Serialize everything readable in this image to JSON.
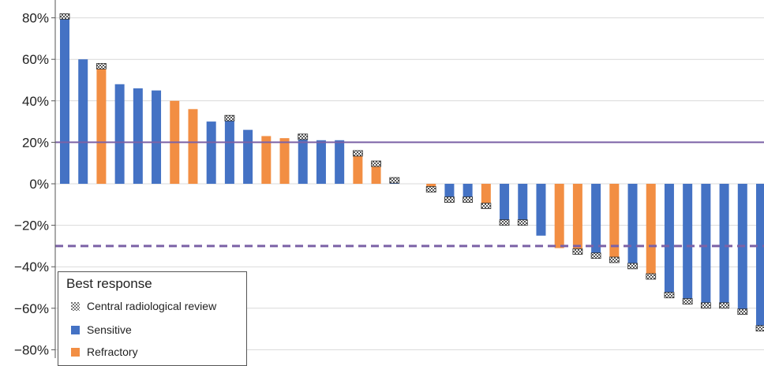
{
  "chart_data": {
    "type": "bar",
    "ylim": [
      -80,
      80
    ],
    "yticks": [
      -80,
      -60,
      -40,
      -20,
      0,
      20,
      40,
      60,
      80
    ],
    "ytick_labels": [
      "−80%",
      "−60%",
      "−40%",
      "−20%",
      "0%",
      "20%",
      "40%",
      "60%",
      "80%"
    ],
    "grid": true,
    "reference_lines": [
      {
        "value": 20,
        "style": "solid",
        "color": "#7b62a6"
      },
      {
        "value": -30,
        "style": "dashed",
        "color": "#7b62a6"
      }
    ],
    "colors": {
      "Sensitive": "#4472c4",
      "Refractory": "#f28e43"
    },
    "bars": [
      {
        "value": 82,
        "group": "Sensitive",
        "review": true
      },
      {
        "value": 60,
        "group": "Sensitive",
        "review": false
      },
      {
        "value": 58,
        "group": "Refractory",
        "review": true
      },
      {
        "value": 48,
        "group": "Sensitive",
        "review": false
      },
      {
        "value": 46,
        "group": "Sensitive",
        "review": false
      },
      {
        "value": 45,
        "group": "Sensitive",
        "review": false
      },
      {
        "value": 40,
        "group": "Refractory",
        "review": false
      },
      {
        "value": 36,
        "group": "Refractory",
        "review": false
      },
      {
        "value": 30,
        "group": "Sensitive",
        "review": false
      },
      {
        "value": 33,
        "group": "Sensitive",
        "review": true
      },
      {
        "value": 26,
        "group": "Sensitive",
        "review": false
      },
      {
        "value": 23,
        "group": "Refractory",
        "review": false
      },
      {
        "value": 22,
        "group": "Refractory",
        "review": false
      },
      {
        "value": 24,
        "group": "Sensitive",
        "review": true
      },
      {
        "value": 21,
        "group": "Sensitive",
        "review": false
      },
      {
        "value": 21,
        "group": "Sensitive",
        "review": false
      },
      {
        "value": 16,
        "group": "Refractory",
        "review": true
      },
      {
        "value": 11,
        "group": "Refractory",
        "review": true
      },
      {
        "value": 3,
        "group": "Sensitive",
        "review": true
      },
      {
        "value": 0,
        "group": "Sensitive",
        "review": false
      },
      {
        "value": -4,
        "group": "Refractory",
        "review": true
      },
      {
        "value": -9,
        "group": "Sensitive",
        "review": true
      },
      {
        "value": -9,
        "group": "Sensitive",
        "review": true
      },
      {
        "value": -12,
        "group": "Refractory",
        "review": true
      },
      {
        "value": -20,
        "group": "Sensitive",
        "review": true
      },
      {
        "value": -20,
        "group": "Sensitive",
        "review": true
      },
      {
        "value": -25,
        "group": "Sensitive",
        "review": false
      },
      {
        "value": -31,
        "group": "Refractory",
        "review": false
      },
      {
        "value": -34,
        "group": "Refractory",
        "review": true
      },
      {
        "value": -36,
        "group": "Sensitive",
        "review": true
      },
      {
        "value": -38,
        "group": "Refractory",
        "review": true
      },
      {
        "value": -41,
        "group": "Sensitive",
        "review": true
      },
      {
        "value": -46,
        "group": "Refractory",
        "review": true
      },
      {
        "value": -55,
        "group": "Sensitive",
        "review": true
      },
      {
        "value": -58,
        "group": "Sensitive",
        "review": true
      },
      {
        "value": -60,
        "group": "Sensitive",
        "review": true
      },
      {
        "value": -60,
        "group": "Sensitive",
        "review": true
      },
      {
        "value": -63,
        "group": "Sensitive",
        "review": true
      },
      {
        "value": -71,
        "group": "Sensitive",
        "review": true
      }
    ],
    "legend": {
      "title": "Best response",
      "items": [
        "Central radiological review",
        "Sensitive",
        "Refractory"
      ],
      "placement": "bottom-left"
    }
  }
}
